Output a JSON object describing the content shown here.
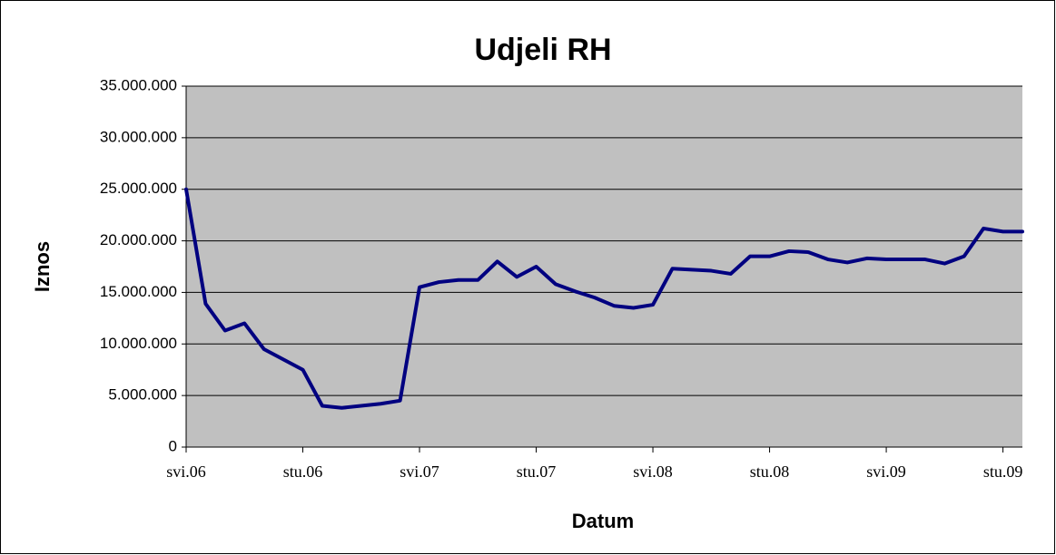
{
  "chart_data": {
    "type": "line",
    "title": "Udjeli RH",
    "xlabel": "Datum",
    "ylabel": "Iznos",
    "x": [
      "2006-05",
      "2006-06",
      "2006-07",
      "2006-08",
      "2006-09",
      "2006-10",
      "2006-11",
      "2006-12",
      "2007-01",
      "2007-02",
      "2007-03",
      "2007-04",
      "2007-05",
      "2007-06",
      "2007-07",
      "2007-08",
      "2007-09",
      "2007-10",
      "2007-11",
      "2007-12",
      "2008-01",
      "2008-02",
      "2008-03",
      "2008-04",
      "2008-05",
      "2008-06",
      "2008-07",
      "2008-08",
      "2008-09",
      "2008-10",
      "2008-11",
      "2008-12",
      "2009-01",
      "2009-02",
      "2009-03",
      "2009-04",
      "2009-05",
      "2009-06",
      "2009-07",
      "2009-08",
      "2009-09",
      "2009-10",
      "2009-11",
      "2009-12"
    ],
    "series": [
      {
        "name": "Udjeli RH",
        "color": "#000080",
        "values": [
          25000000,
          13900000,
          11300000,
          12000000,
          9500000,
          8500000,
          7500000,
          4000000,
          3800000,
          4000000,
          4200000,
          4500000,
          15500000,
          16000000,
          16200000,
          16200000,
          18000000,
          16500000,
          17500000,
          15800000,
          15100000,
          14500000,
          13700000,
          13500000,
          13800000,
          17300000,
          17200000,
          17100000,
          16800000,
          18500000,
          18500000,
          19000000,
          18900000,
          18200000,
          17900000,
          18300000,
          18200000,
          18200000,
          18200000,
          17800000,
          18500000,
          21200000,
          20900000,
          20900000
        ]
      }
    ],
    "xlim": [
      "2006-05",
      "2009-12"
    ],
    "xticks": [
      {
        "value": "2006-05",
        "label": "svi.06"
      },
      {
        "value": "2006-11",
        "label": "stu.06"
      },
      {
        "value": "2007-05",
        "label": "svi.07"
      },
      {
        "value": "2007-11",
        "label": "stu.07"
      },
      {
        "value": "2008-05",
        "label": "svi.08"
      },
      {
        "value": "2008-11",
        "label": "stu.08"
      },
      {
        "value": "2009-05",
        "label": "svi.09"
      },
      {
        "value": "2009-11",
        "label": "stu.09"
      }
    ],
    "ylim": [
      0,
      35000000
    ],
    "yticks": [
      0,
      {
        "value": 5000000,
        "label": "5.000.000"
      },
      {
        "value": 10000000,
        "label": "10.000.000"
      },
      {
        "value": 15000000,
        "label": "15.000.000"
      },
      {
        "value": 20000000,
        "label": "20.000.000"
      },
      {
        "value": 25000000,
        "label": "25.000.000"
      },
      {
        "value": 30000000,
        "label": "30.000.000"
      },
      {
        "value": 35000000,
        "label": "35.000.000"
      }
    ],
    "grid": true
  }
}
